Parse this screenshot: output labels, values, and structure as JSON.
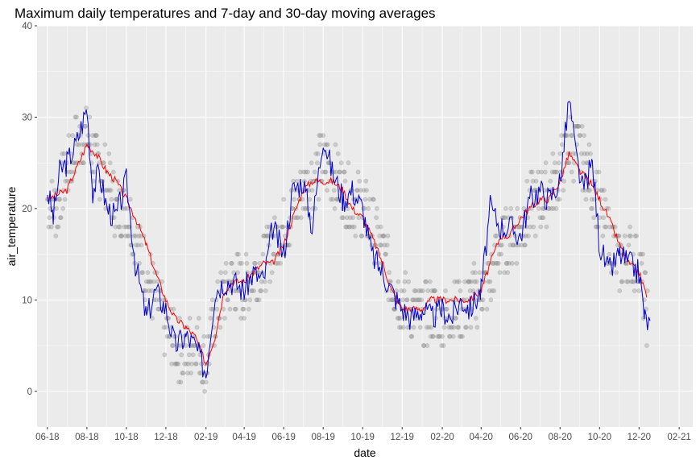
{
  "chart_data": {
    "type": "scatter",
    "title": "Maximum daily temperatures and 7-day and 30-day moving averages",
    "xlabel": "date",
    "ylabel": "air_temperature",
    "ylim": [
      -3.9,
      40
    ],
    "y_ticks": [
      0,
      10,
      20,
      30,
      40
    ],
    "x_range": [
      "2018-05-16",
      "2021-02-22"
    ],
    "x_ticks": [
      {
        "date": "2018-06-01",
        "label": "06-18"
      },
      {
        "date": "2018-08-01",
        "label": "08-18"
      },
      {
        "date": "2018-10-01",
        "label": "10-18"
      },
      {
        "date": "2018-12-01",
        "label": "12-18"
      },
      {
        "date": "2019-02-01",
        "label": "02-19"
      },
      {
        "date": "2019-04-01",
        "label": "04-19"
      },
      {
        "date": "2019-06-01",
        "label": "06-19"
      },
      {
        "date": "2019-08-01",
        "label": "08-19"
      },
      {
        "date": "2019-10-01",
        "label": "10-19"
      },
      {
        "date": "2019-12-01",
        "label": "12-19"
      },
      {
        "date": "2020-02-01",
        "label": "02-20"
      },
      {
        "date": "2020-04-01",
        "label": "04-20"
      },
      {
        "date": "2020-06-01",
        "label": "06-20"
      },
      {
        "date": "2020-08-01",
        "label": "08-20"
      },
      {
        "date": "2020-10-01",
        "label": "10-20"
      },
      {
        "date": "2020-12-01",
        "label": "12-20"
      },
      {
        "date": "2021-02-01",
        "label": "02-21"
      }
    ],
    "grid": true,
    "colors": {
      "panel": "#ebebeb",
      "grid_major": "#ffffff",
      "points": "#8c8c8c",
      "ma7": "#0000cd",
      "ma30": "#ff0000"
    },
    "series": [
      {
        "style": "points",
        "x": [
          "2018-06-01",
          "2018-06-15",
          "2018-07-01",
          "2018-07-15",
          "2018-08-01",
          "2018-08-15",
          "2018-09-01",
          "2018-09-15",
          "2018-10-01",
          "2018-10-15",
          "2018-11-01",
          "2018-11-15",
          "2018-12-01",
          "2018-12-15",
          "2019-01-01",
          "2019-01-15",
          "2019-02-01",
          "2019-02-15",
          "2019-03-01",
          "2019-03-15",
          "2019-04-01",
          "2019-04-15",
          "2019-05-01",
          "2019-05-15",
          "2019-06-01",
          "2019-06-15",
          "2019-07-01",
          "2019-07-15",
          "2019-08-01",
          "2019-08-15",
          "2019-09-01",
          "2019-09-15",
          "2019-10-01",
          "2019-10-15",
          "2019-11-01",
          "2019-11-15",
          "2019-12-01",
          "2019-12-15",
          "2020-01-01",
          "2020-01-15",
          "2020-02-01",
          "2020-02-15",
          "2020-03-01",
          "2020-03-15",
          "2020-04-01",
          "2020-04-15",
          "2020-05-01",
          "2020-05-15",
          "2020-06-01",
          "2020-06-15",
          "2020-07-01",
          "2020-07-15",
          "2020-08-01",
          "2020-08-15",
          "2020-09-01",
          "2020-09-15",
          "2020-10-01",
          "2020-10-15",
          "2020-11-01",
          "2020-11-15",
          "2020-12-01",
          "2020-12-15"
        ],
        "values": [
          21,
          20,
          24,
          27,
          28,
          25,
          23,
          20,
          20,
          17,
          13,
          10,
          7,
          5,
          4,
          6,
          3,
          8,
          11,
          12,
          11,
          13,
          14,
          16,
          18,
          20,
          22,
          23,
          25,
          24,
          22,
          21,
          20,
          18,
          15,
          12,
          10,
          9,
          8,
          9,
          8,
          9,
          9,
          10,
          11,
          12,
          16,
          17,
          18,
          20,
          21,
          22,
          24,
          27,
          26,
          24,
          20,
          17,
          14,
          15,
          14,
          8
        ],
        "spread": 3.5
      },
      {
        "name": "7-day",
        "style": "line",
        "x": [
          "2018-06-01",
          "2018-06-10",
          "2018-06-20",
          "2018-07-01",
          "2018-07-15",
          "2018-08-01",
          "2018-08-10",
          "2018-08-20",
          "2018-09-01",
          "2018-09-15",
          "2018-10-01",
          "2018-10-15",
          "2018-11-01",
          "2018-11-15",
          "2018-12-01",
          "2018-12-15",
          "2019-01-01",
          "2019-01-15",
          "2019-02-01",
          "2019-02-15",
          "2019-03-01",
          "2019-03-15",
          "2019-04-01",
          "2019-04-15",
          "2019-05-01",
          "2019-05-15",
          "2019-06-01",
          "2019-06-15",
          "2019-07-01",
          "2019-07-15",
          "2019-08-01",
          "2019-08-15",
          "2019-09-01",
          "2019-09-15",
          "2019-10-01",
          "2019-10-15",
          "2019-11-01",
          "2019-11-15",
          "2019-12-01",
          "2019-12-15",
          "2020-01-01",
          "2020-01-15",
          "2020-02-01",
          "2020-02-15",
          "2020-03-01",
          "2020-03-15",
          "2020-04-01",
          "2020-04-15",
          "2020-05-01",
          "2020-05-15",
          "2020-06-01",
          "2020-06-15",
          "2020-07-01",
          "2020-07-15",
          "2020-08-01",
          "2020-08-15",
          "2020-08-25",
          "2020-09-05",
          "2020-09-20",
          "2020-10-01",
          "2020-10-15",
          "2020-11-01",
          "2020-11-15",
          "2020-12-01",
          "2020-12-10",
          "2020-12-20"
        ],
        "values": [
          22,
          19,
          24,
          25,
          27,
          31,
          22,
          24,
          20,
          19,
          23,
          14,
          8,
          11,
          9,
          5,
          6,
          5,
          2,
          11,
          12,
          12,
          11,
          13,
          12,
          18,
          15,
          22,
          23,
          18,
          28,
          24,
          21,
          22,
          20,
          15,
          13,
          11,
          9,
          8,
          9,
          8,
          9,
          8,
          10,
          9,
          11,
          20,
          18,
          18,
          17,
          21,
          22,
          21,
          23,
          32,
          26,
          22,
          25,
          16,
          13,
          15,
          14,
          13,
          8,
          7
        ]
      },
      {
        "name": "30-day",
        "style": "line",
        "x": [
          "2018-06-01",
          "2018-07-01",
          "2018-08-01",
          "2018-08-15",
          "2018-09-01",
          "2018-09-15",
          "2018-10-01",
          "2018-10-15",
          "2018-11-01",
          "2018-11-15",
          "2018-12-01",
          "2018-12-15",
          "2019-01-01",
          "2019-01-15",
          "2019-02-01",
          "2019-02-15",
          "2019-03-01",
          "2019-03-15",
          "2019-04-01",
          "2019-04-15",
          "2019-05-01",
          "2019-05-15",
          "2019-06-01",
          "2019-06-15",
          "2019-07-01",
          "2019-07-15",
          "2019-08-01",
          "2019-08-15",
          "2019-09-01",
          "2019-09-15",
          "2019-10-01",
          "2019-10-15",
          "2019-11-01",
          "2019-11-15",
          "2019-12-01",
          "2019-12-15",
          "2020-01-01",
          "2020-01-15",
          "2020-02-01",
          "2020-02-15",
          "2020-03-01",
          "2020-03-15",
          "2020-04-01",
          "2020-04-15",
          "2020-05-01",
          "2020-05-15",
          "2020-06-01",
          "2020-06-15",
          "2020-07-01",
          "2020-07-15",
          "2020-08-01",
          "2020-08-15",
          "2020-09-01",
          "2020-09-15",
          "2020-10-01",
          "2020-10-15",
          "2020-11-01",
          "2020-11-15",
          "2020-12-01",
          "2020-12-15"
        ],
        "values": [
          21,
          22,
          27,
          26,
          24,
          23,
          21,
          19,
          16,
          13,
          10,
          8,
          7,
          6,
          3,
          6,
          11,
          12,
          12,
          13,
          14,
          14,
          16,
          19,
          22,
          23,
          23,
          23,
          22,
          20,
          19,
          17,
          14,
          11,
          9,
          9,
          9,
          10,
          10,
          10,
          10,
          10,
          11,
          14,
          17,
          17,
          19,
          20,
          21,
          21,
          23,
          26,
          24,
          23,
          21,
          19,
          16,
          14,
          13,
          10
        ]
      }
    ]
  }
}
